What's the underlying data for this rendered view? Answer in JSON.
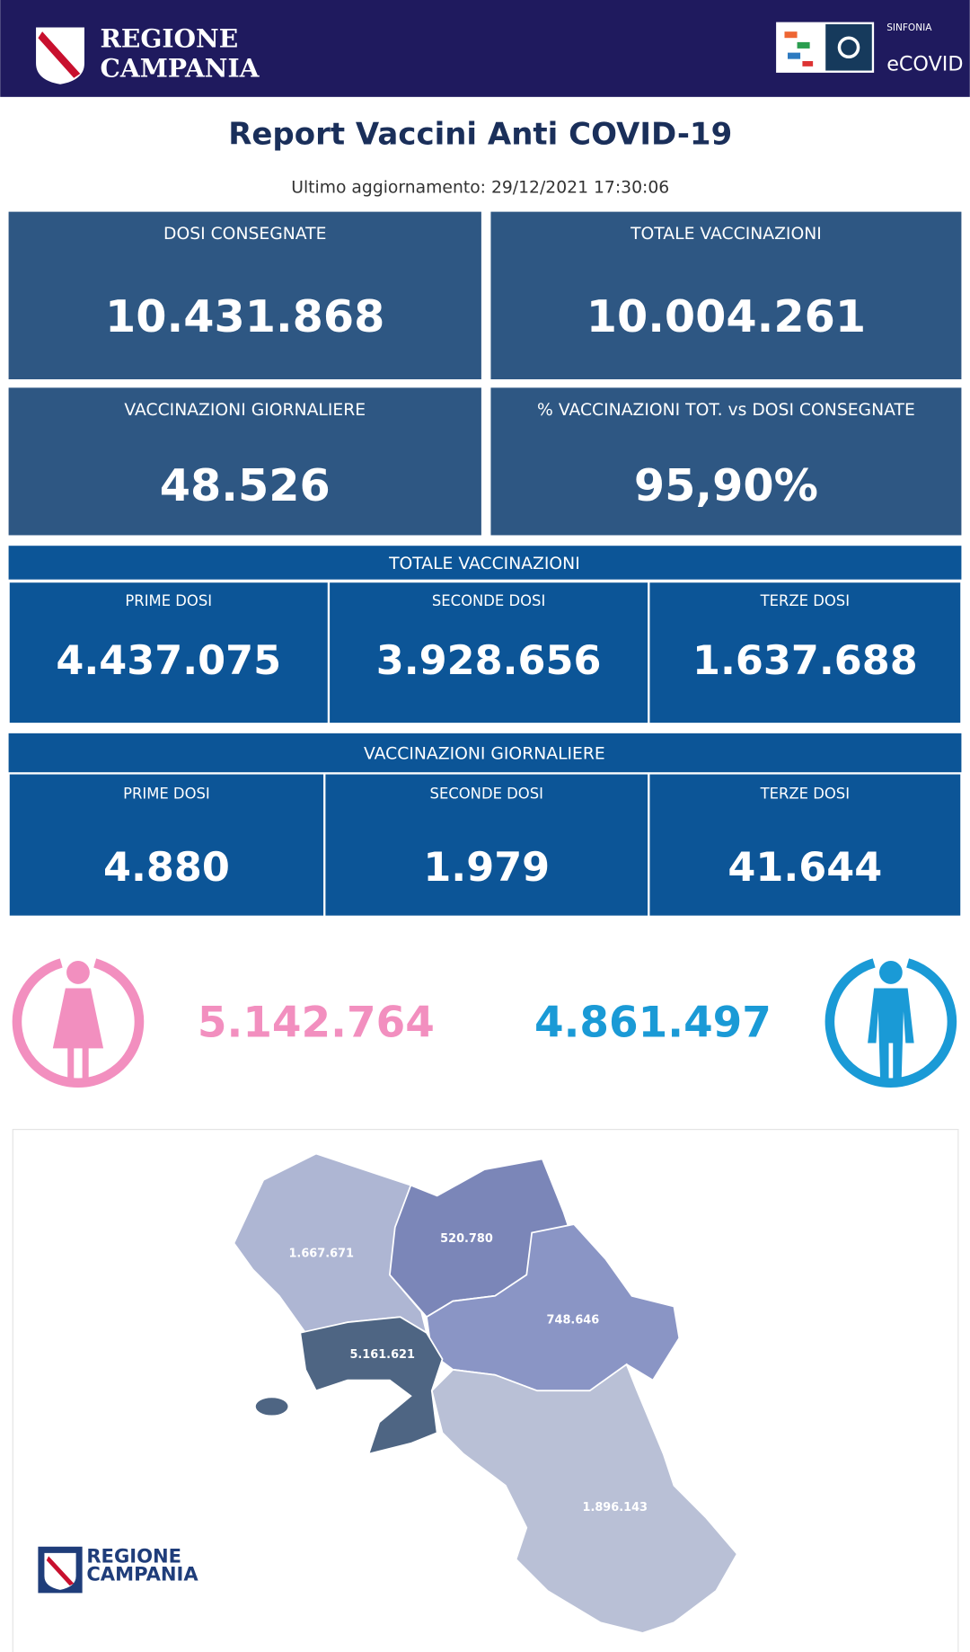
{
  "header": {
    "logo_line1": "REGIONE",
    "logo_line2": "CAMPANIA",
    "brand_small": "SINFONIA",
    "brand": "eCOVID"
  },
  "title": "Report Vaccini Anti COVID-19",
  "updated": "Ultimo aggiornamento: 29/12/2021 17:30:06",
  "cards": [
    {
      "label": "DOSI  CONSEGNATE",
      "value": "10.431.868"
    },
    {
      "label": "TOTALE VACCINAZIONI",
      "value": "10.004.261"
    },
    {
      "label": "VACCINAZIONI GIORNALIERE",
      "value": "48.526"
    },
    {
      "label": "% VACCINAZIONI TOT. vs DOSI CONSEGNATE",
      "value": "95,90%"
    }
  ],
  "sections": [
    {
      "title": "TOTALE VACCINAZIONI",
      "cells": [
        {
          "label": "PRIME DOSI",
          "value": "4.437.075"
        },
        {
          "label": "SECONDE DOSI",
          "value": "3.928.656"
        },
        {
          "label": "TERZE DOSI",
          "value": "1.637.688"
        }
      ]
    },
    {
      "title": "VACCINAZIONI GIORNALIERE",
      "cells": [
        {
          "label": "PRIME DOSI",
          "value": "4.880"
        },
        {
          "label": "SECONDE DOSI",
          "value": "1.979"
        },
        {
          "label": "TERZE DOSI",
          "value": "41.644"
        }
      ]
    }
  ],
  "gender": {
    "female": "5.142.764",
    "male": "4.861.497"
  },
  "map": {
    "regions": [
      "1.667.671",
      "520.780",
      "748.646",
      "5.161.621",
      "1.896.143"
    ],
    "logo_line1": "REGIONE",
    "logo_line2": "CAMPANIA"
  }
}
